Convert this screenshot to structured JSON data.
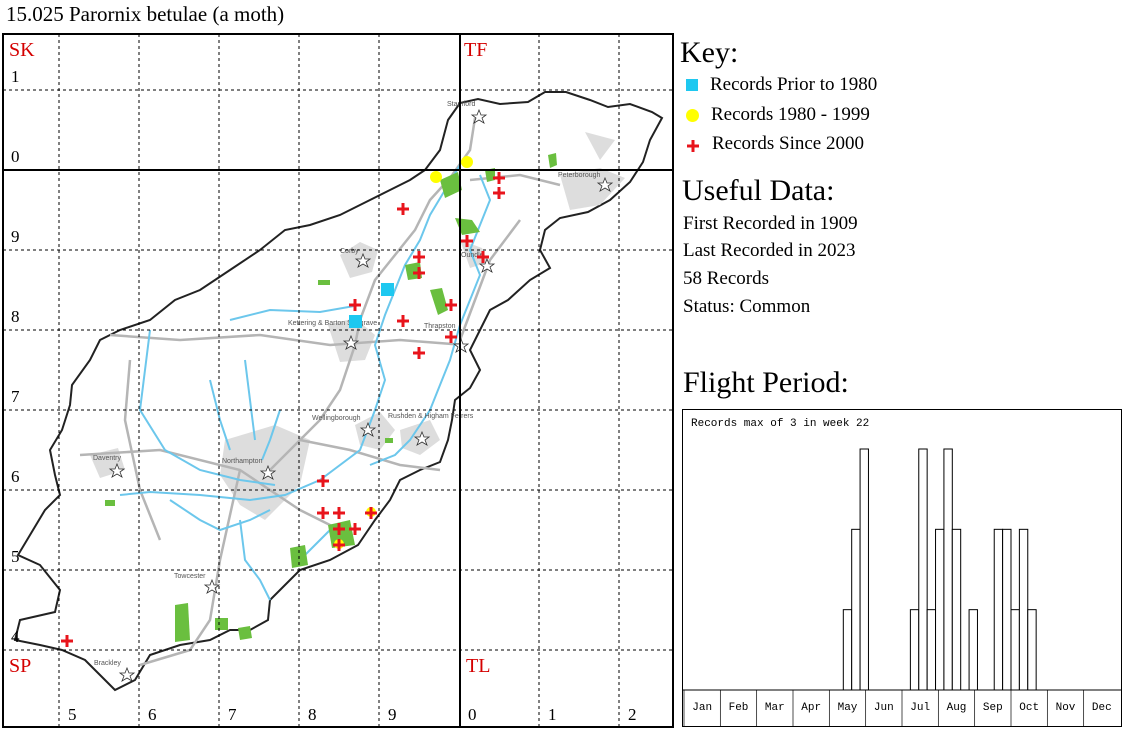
{
  "title": "15.025 Parornix betulae (a moth)",
  "map": {
    "grid_squares": {
      "top_left": "SK",
      "top_right": "TF",
      "bottom_left": "SP",
      "bottom_right": "TL"
    },
    "row_labels": [
      "1",
      "0",
      "9",
      "8",
      "7",
      "6",
      "5",
      "4"
    ],
    "col_labels": [
      "5",
      "6",
      "7",
      "8",
      "9",
      "0",
      "1",
      "2"
    ],
    "towns": [
      "Stamford",
      "Peterborough",
      "Corby",
      "Oundle",
      "Kettering & Barton Seagrave",
      "Thrapston",
      "Wellingborough",
      "Rushden & Higham Ferrers",
      "Daventry",
      "Northampton",
      "Towcester",
      "Brackley"
    ],
    "marker_colors": {
      "pre_1980": "#1ec8f0",
      "1980_1999": "#ffff00",
      "since_2000": "#e8141c",
      "grid_label": "#d40000"
    }
  },
  "key": {
    "title": "Key:",
    "items": [
      {
        "label": "Records Prior to 1980",
        "icon": "cyan-square"
      },
      {
        "label": "Records 1980 - 1999",
        "icon": "yellow-circle"
      },
      {
        "label": "Records Since 2000",
        "icon": "red-cross"
      }
    ]
  },
  "useful_data": {
    "title": "Useful Data:",
    "first": "First Recorded in 1909",
    "last": "Last Recorded in 2023",
    "records": "58 Records",
    "status": "Status: Common"
  },
  "flight": {
    "title": "Flight Period:",
    "note": "Records max of 3 in week 22",
    "months": [
      "Jan",
      "Feb",
      "Mar",
      "Apr",
      "May",
      "Jun",
      "Jul",
      "Aug",
      "Sep",
      "Oct",
      "Nov",
      "Dec"
    ],
    "weeks": [
      0,
      0,
      0,
      0,
      0,
      0,
      0,
      0,
      0,
      0,
      0,
      0,
      0,
      0,
      0,
      0,
      0,
      0,
      0,
      1,
      2,
      3,
      0,
      0,
      0,
      0,
      0,
      1,
      3,
      1,
      2,
      3,
      2,
      0,
      1,
      0,
      0,
      2,
      2,
      1,
      2,
      1,
      0,
      0,
      0,
      0,
      0,
      0,
      0,
      0,
      0,
      0
    ],
    "max": 3
  }
}
